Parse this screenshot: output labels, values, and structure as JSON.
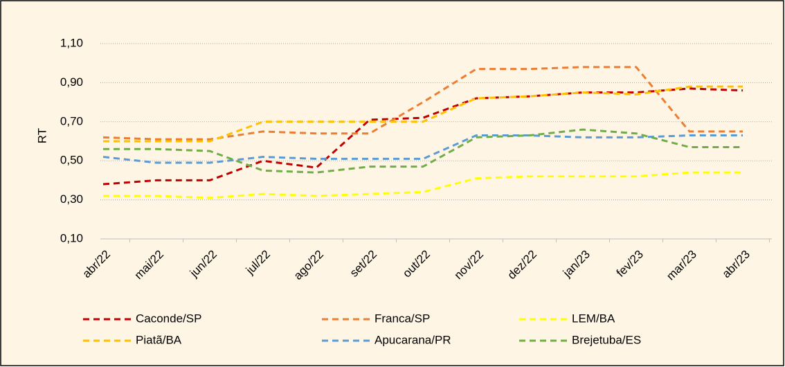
{
  "chart_data": {
    "type": "line",
    "ylabel": "RT",
    "categories": [
      "abr/22",
      "mai/22",
      "jun/22",
      "jul/22",
      "ago/22",
      "set/22",
      "out/22",
      "nov/22",
      "dez/22",
      "jan/23",
      "fev/23",
      "mar/23",
      "abr/23"
    ],
    "ylim": [
      0.1,
      1.1
    ],
    "yticks": [
      {
        "value": 0.1,
        "label": "0,10"
      },
      {
        "value": 0.3,
        "label": "0,30"
      },
      {
        "value": 0.5,
        "label": "0,50"
      },
      {
        "value": 0.7,
        "label": "0,70"
      },
      {
        "value": 0.9,
        "label": "0,90"
      },
      {
        "value": 1.1,
        "label": "1,10"
      }
    ],
    "grid": true,
    "legend": "bottom",
    "series": [
      {
        "name": "Caconde/SP",
        "color": "#c00000",
        "values": [
          0.38,
          0.4,
          0.4,
          0.5,
          0.465,
          0.71,
          0.72,
          0.82,
          0.83,
          0.85,
          0.85,
          0.87,
          0.86
        ]
      },
      {
        "name": "Franca/SP",
        "color": "#ed7d31",
        "values": [
          0.62,
          0.61,
          0.61,
          0.65,
          0.64,
          0.64,
          0.8,
          0.97,
          0.97,
          0.98,
          0.98,
          0.65,
          0.65
        ]
      },
      {
        "name": "LEM/BA",
        "color": "#ffff00",
        "values": [
          0.32,
          0.32,
          0.31,
          0.33,
          0.32,
          0.33,
          0.34,
          0.41,
          0.42,
          0.42,
          0.42,
          0.44,
          0.44
        ]
      },
      {
        "name": "Piatã/BA",
        "color": "#ffc000",
        "values": [
          0.6,
          0.6,
          0.6,
          0.7,
          0.7,
          0.7,
          0.7,
          0.82,
          0.83,
          0.85,
          0.84,
          0.88,
          0.88
        ]
      },
      {
        "name": "Apucarana/PR",
        "color": "#5b9bd5",
        "values": [
          0.52,
          0.49,
          0.49,
          0.52,
          0.51,
          0.51,
          0.51,
          0.63,
          0.63,
          0.62,
          0.62,
          0.63,
          0.63
        ]
      },
      {
        "name": "Brejetuba/ES",
        "color": "#70ad47",
        "values": [
          0.56,
          0.56,
          0.55,
          0.45,
          0.44,
          0.47,
          0.47,
          0.62,
          0.63,
          0.66,
          0.64,
          0.57,
          0.57
        ]
      }
    ]
  }
}
